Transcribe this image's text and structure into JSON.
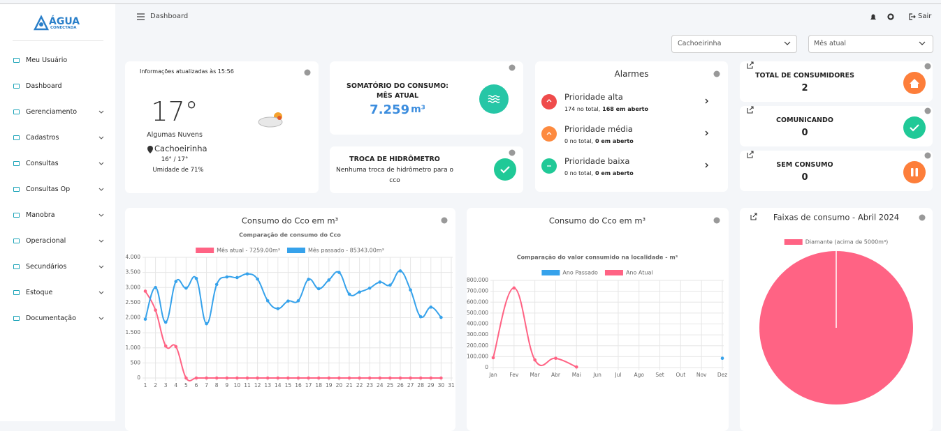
{
  "sidebar": {
    "logo": {
      "title": "ÁGUA",
      "subtitle": "CONECTADA"
    },
    "menu": [
      "Meu Usuário",
      "Dashboard",
      "Gerenciamento",
      "Cadastros",
      "Consultas",
      "Consultas Op",
      "Manobra",
      "Operacional",
      "Secundários",
      "Estoque",
      "Documentação"
    ]
  },
  "topbar": {
    "title": "Dashboard",
    "logout": "Sair"
  },
  "filters": {
    "location": "Cachoeirinha",
    "period": "Mês atual"
  },
  "weather": {
    "updated": "Informações atualizadas às 15:56",
    "temperature": "17°",
    "condition": "Algumas Nuvens",
    "city": "Cachoeirinha",
    "range": "16° / 17°",
    "humidity": "Umidade de 71%"
  },
  "consumption": {
    "title": "SOMATÓRIO DO CONSUMO: MÊS ATUAL",
    "value": "7.259",
    "unit": "m³"
  },
  "meter_change": {
    "title": "TROCA DE HIDRÔMETRO",
    "text": "Nenhuma troca de hidrômetro para o cco"
  },
  "alarms": {
    "title": "Alarmes",
    "items": [
      {
        "name": "Prioridade alta",
        "total": "174 no total,",
        "open": "168 em aberto"
      },
      {
        "name": "Prioridade média",
        "total": "0 no total,",
        "open": "0 em aberto"
      },
      {
        "name": "Prioridade baixa",
        "total": "0 no total,",
        "open": "0 em aberto"
      }
    ]
  },
  "stats": [
    {
      "label": "TOTAL DE CONSUMIDORES",
      "value": 2
    },
    {
      "label": "COMUNICANDO",
      "value": 0
    },
    {
      "label": "SEM CONSUMO",
      "value": 0
    }
  ],
  "chart_data": [
    {
      "type": "line",
      "title": "Consumo do Cco em m³",
      "subtitle": "Comparação de consumo do Cco",
      "x": [
        1,
        2,
        3,
        4,
        5,
        6,
        7,
        8,
        9,
        10,
        11,
        12,
        13,
        14,
        15,
        16,
        17,
        18,
        19,
        20,
        21,
        22,
        23,
        24,
        25,
        26,
        27,
        28,
        29,
        30,
        31
      ],
      "xlim": [
        1,
        31
      ],
      "series": [
        {
          "name": "Mês atual - 7259.00m³",
          "color": "#ff6384",
          "values": [
            2880,
            2250,
            1060,
            1040,
            0,
            0,
            0,
            0,
            0,
            0,
            0,
            0,
            0,
            0,
            0,
            0,
            0,
            0,
            0,
            0,
            0,
            0,
            0,
            0,
            0,
            0,
            0,
            0,
            0,
            0,
            null
          ]
        },
        {
          "name": "Mês passado - 85343.00m³",
          "color": "#36a2eb",
          "values": [
            1950,
            3000,
            1850,
            3200,
            2980,
            3300,
            1800,
            3100,
            3350,
            3330,
            3450,
            3280,
            2560,
            2300,
            2550,
            2560,
            3270,
            2960,
            3250,
            3500,
            2780,
            2850,
            2980,
            3180,
            3080,
            3550,
            2920,
            2030,
            2350,
            2010,
            null
          ]
        }
      ],
      "ylim": [
        0,
        4000
      ],
      "yticks": [
        0,
        500,
        {
          "value": 1000,
          "label": "1.000"
        },
        {
          "value": 1500,
          "label": "1.500"
        },
        {
          "value": 2000,
          "label": "2.000"
        },
        {
          "value": 2500,
          "label": "2.500"
        },
        {
          "value": 3000,
          "label": "3.000"
        },
        {
          "value": 3500,
          "label": "3.500"
        },
        {
          "value": 4000,
          "label": "4.000"
        }
      ],
      "grid": true
    },
    {
      "type": "line",
      "title": "Consumo do Cco em m³",
      "subtitle": "Comparação do valor consumido na localidade - m³",
      "categories": [
        "Jan",
        "Fev",
        "Mar",
        "Abr",
        "Mai",
        "Jun",
        "Jul",
        "Ago",
        "Set",
        "Out",
        "Nov",
        "Dez"
      ],
      "series": [
        {
          "name": "Ano Passado",
          "color": "#36a2eb",
          "values": [
            null,
            null,
            null,
            null,
            null,
            null,
            null,
            null,
            null,
            null,
            null,
            85000
          ]
        },
        {
          "name": "Ano Atual",
          "color": "#ff6384",
          "values": [
            90000,
            730000,
            70000,
            85000,
            5000,
            null,
            null,
            null,
            null,
            null,
            null,
            null
          ]
        }
      ],
      "ylim": [
        0,
        800000
      ],
      "yticks": [
        0,
        {
          "value": 100000,
          "label": "100.000"
        },
        {
          "value": 200000,
          "label": "200.000"
        },
        {
          "value": 300000,
          "label": "300.000"
        },
        {
          "value": 400000,
          "label": "400.000"
        },
        {
          "value": 500000,
          "label": "500.000"
        },
        {
          "value": 600000,
          "label": "600.000"
        },
        {
          "value": 700000,
          "label": "700.000"
        },
        {
          "value": 800000,
          "label": "800.000"
        }
      ],
      "grid": true
    },
    {
      "type": "pie",
      "title": "Faixas de consumo - Abril 2024",
      "categories": [
        "Diamante (acima de 5000m³)"
      ],
      "values": [
        100
      ],
      "colors": [
        "#ff6384"
      ]
    }
  ]
}
